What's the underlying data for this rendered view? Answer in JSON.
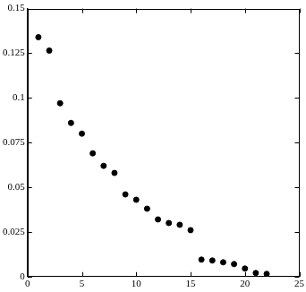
{
  "chart_data": {
    "type": "scatter",
    "x": [
      1,
      2,
      3,
      4,
      5,
      6,
      7,
      8,
      9,
      10,
      11,
      12,
      13,
      14,
      15,
      16,
      17,
      18,
      19,
      20,
      21,
      22
    ],
    "values": [
      0.134,
      0.1265,
      0.097,
      0.086,
      0.08,
      0.069,
      0.062,
      0.058,
      0.046,
      0.043,
      0.038,
      0.032,
      0.03,
      0.029,
      0.026,
      0.0095,
      0.009,
      0.008,
      0.007,
      0.0045,
      0.002,
      0.0015
    ],
    "color": "#000000",
    "marker": "circle",
    "xlim": [
      0,
      25
    ],
    "xticks": [
      0,
      5,
      10,
      15,
      20,
      25
    ],
    "ylim": [
      0,
      0.15
    ],
    "yticks": [
      0,
      0.025,
      0.05,
      0.075,
      0.1,
      0.125,
      0.15
    ],
    "grid": false
  }
}
